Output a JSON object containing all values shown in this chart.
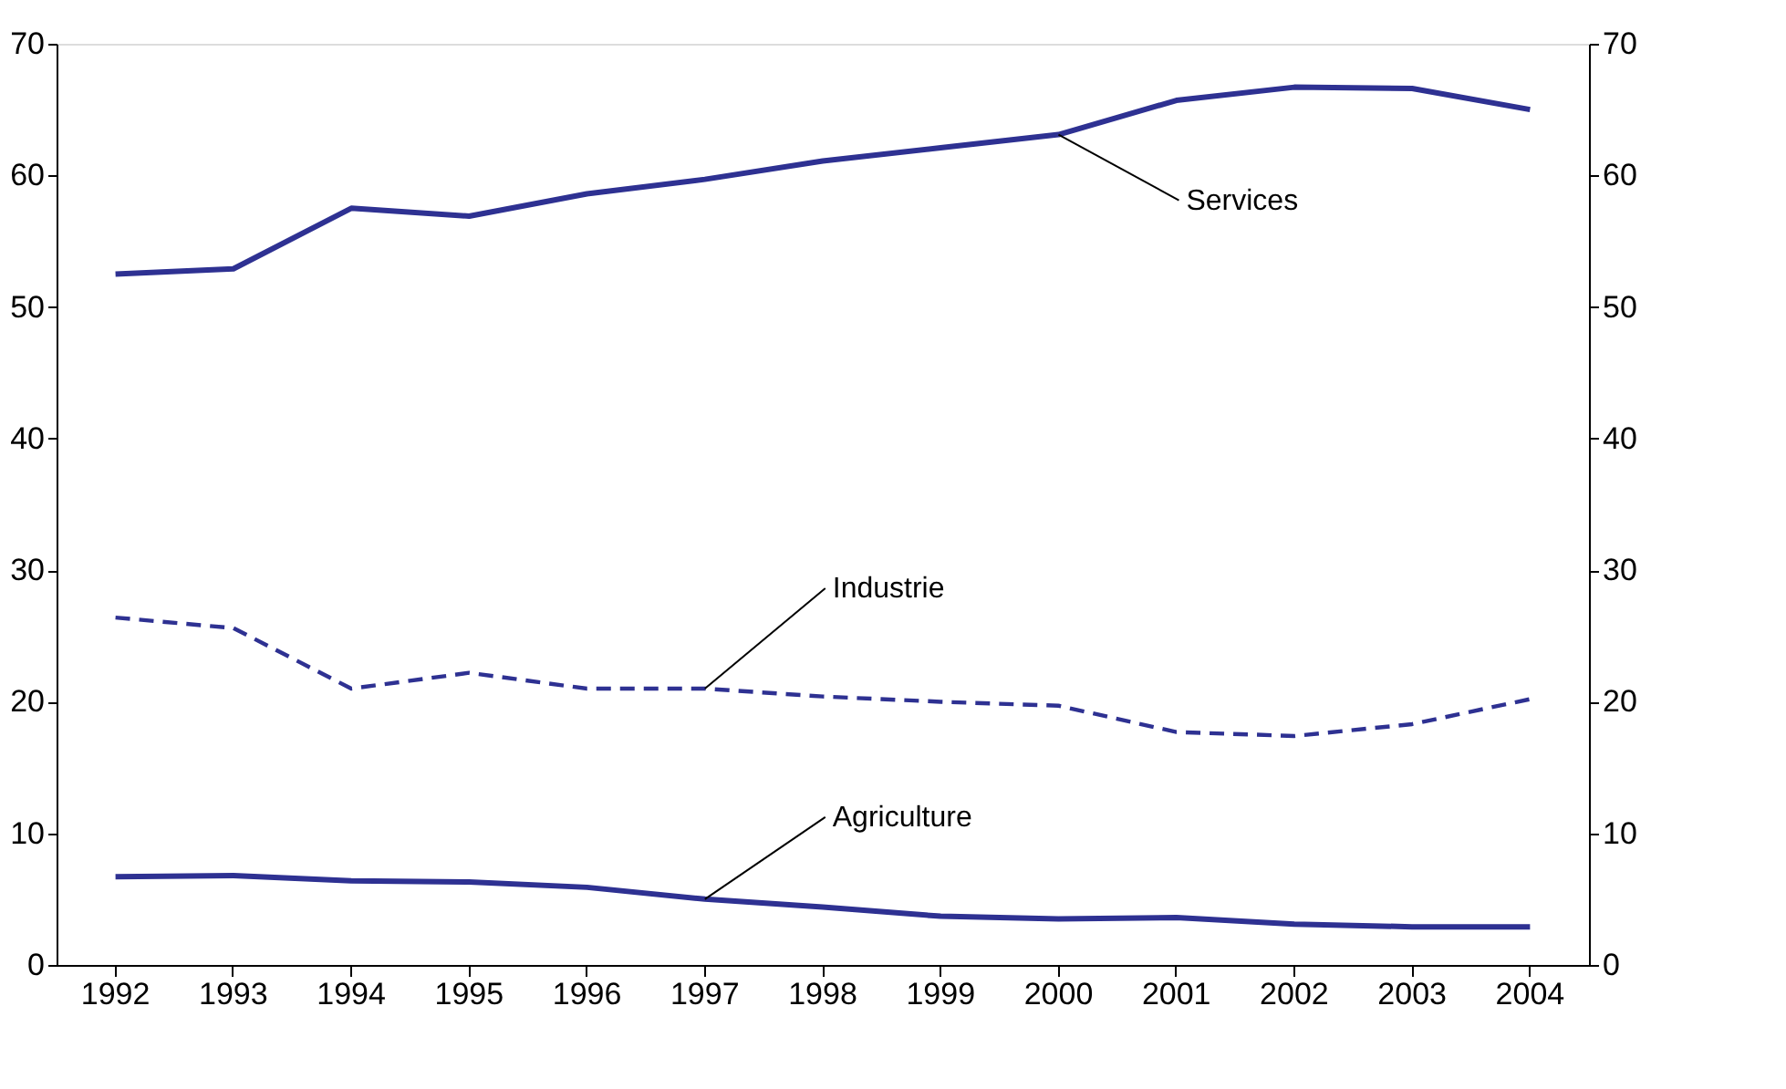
{
  "chart_data": {
    "type": "line",
    "categories": [
      "1992",
      "1993",
      "1994",
      "1995",
      "1996",
      "1997",
      "1998",
      "1999",
      "2000",
      "2001",
      "2002",
      "2003",
      "2004"
    ],
    "series": [
      {
        "name": "Services",
        "color": "#2e3192",
        "line_style": "solid",
        "values": [
          52.5,
          52.9,
          57.5,
          56.9,
          58.6,
          59.7,
          61.1,
          62.1,
          63.1,
          65.7,
          66.7,
          66.6,
          65.0
        ]
      },
      {
        "name": "Industrie",
        "color": "#2e3192",
        "line_style": "dashed",
        "values": [
          26.4,
          25.6,
          21.0,
          22.2,
          21.0,
          21.0,
          20.4,
          20.0,
          19.7,
          17.7,
          17.4,
          18.3,
          20.2
        ]
      },
      {
        "name": "Agriculture",
        "color": "#2e3192",
        "line_style": "solid",
        "values": [
          6.7,
          6.8,
          6.4,
          6.3,
          5.9,
          5.0,
          4.4,
          3.7,
          3.5,
          3.6,
          3.1,
          2.9,
          2.9
        ]
      }
    ],
    "ylim": [
      0,
      70
    ],
    "yticks": [
      0,
      10,
      20,
      30,
      40,
      50,
      60,
      70
    ],
    "y2lim": [
      0,
      70
    ],
    "y2ticks": [
      0,
      10,
      20,
      30,
      40,
      50,
      60,
      70
    ],
    "grid": false,
    "marker": "none"
  }
}
